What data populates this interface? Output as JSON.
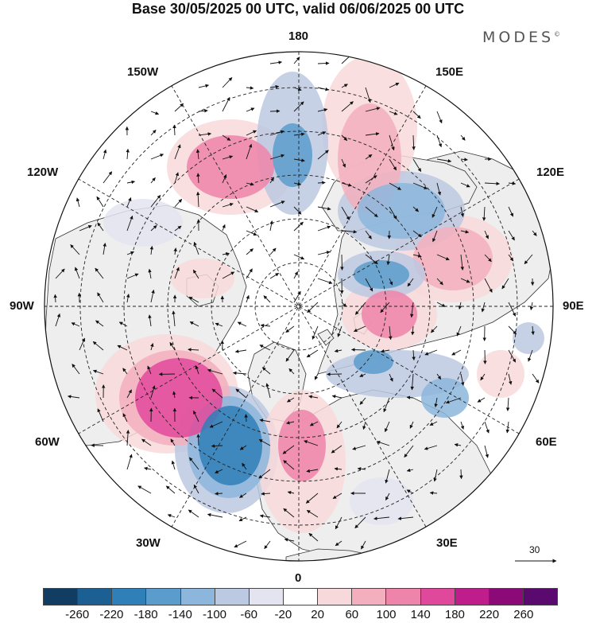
{
  "title": "Base 30/05/2025 00 UTC, valid 06/06/2025 00 UTC",
  "logo": "MODES",
  "logo_mark": "©",
  "longitude_labels": {
    "top": "180",
    "bottom": "0",
    "left": "90W",
    "right": "90E",
    "upper_left_1": "150W",
    "upper_left_2": "120W",
    "upper_right_1": "150E",
    "upper_right_2": "120E",
    "lower_left_1": "60W",
    "lower_left_2": "30W",
    "lower_right_1": "60E",
    "lower_right_2": "30E"
  },
  "reference_vector_label": "30",
  "colorbar": {
    "labels": [
      "-260",
      "-220",
      "-180",
      "-140",
      "-100",
      "-60",
      "-20",
      "20",
      "60",
      "100",
      "140",
      "180",
      "220",
      "260"
    ],
    "colors": [
      "#123d63",
      "#1c5f93",
      "#2f7fb8",
      "#5a9ccb",
      "#8cb6dc",
      "#bcc9e2",
      "#e4e4f0",
      "#ffffff",
      "#f8d9db",
      "#f3afbd",
      "#ee84a9",
      "#e0499b",
      "#bf1d8c",
      "#8c0a78",
      "#5a0a6e"
    ]
  },
  "colors": {
    "land": "#eeeeee",
    "ocean": "#ffffff",
    "coastline": "#333333",
    "grid": "#222222"
  }
}
